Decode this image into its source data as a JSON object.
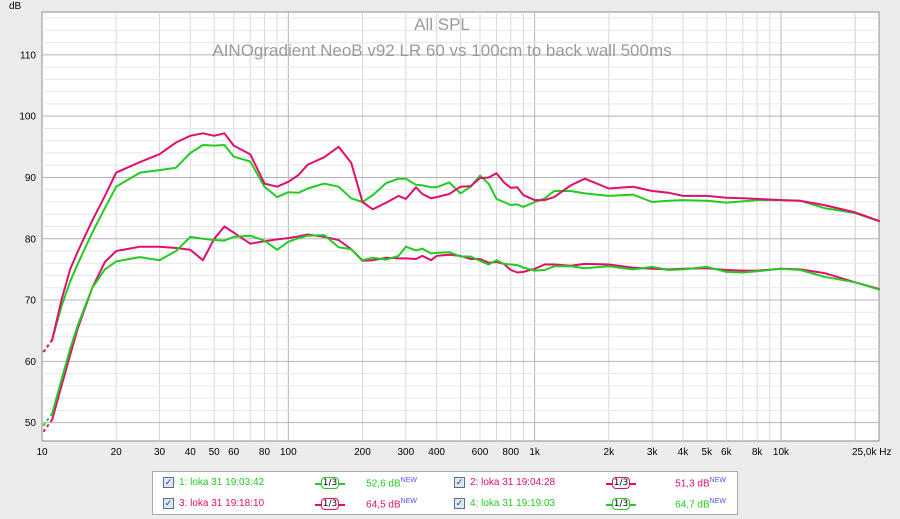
{
  "chart_data": {
    "type": "line",
    "title": "All SPL",
    "subtitle": "AINOgradient NeoB v92 LR 60 vs 100cm to back wall 500ms",
    "ylabel": "dB",
    "xunit": "Hz",
    "xscale": "log",
    "xlim": [
      10,
      25000
    ],
    "ylim": [
      47,
      117
    ],
    "grid": true,
    "x_ticks": [
      {
        "v": 10,
        "t": "10"
      },
      {
        "v": 20,
        "t": "20"
      },
      {
        "v": 30,
        "t": "30"
      },
      {
        "v": 40,
        "t": "40"
      },
      {
        "v": 50,
        "t": "50"
      },
      {
        "v": 60,
        "t": "60"
      },
      {
        "v": 80,
        "t": "80"
      },
      {
        "v": 100,
        "t": "100"
      },
      {
        "v": 200,
        "t": "200"
      },
      {
        "v": 300,
        "t": "300"
      },
      {
        "v": 400,
        "t": "400"
      },
      {
        "v": 600,
        "t": "600"
      },
      {
        "v": 800,
        "t": "800"
      },
      {
        "v": 1000,
        "t": "1k"
      },
      {
        "v": 2000,
        "t": "2k"
      },
      {
        "v": 3000,
        "t": "3k"
      },
      {
        "v": 4000,
        "t": "4k"
      },
      {
        "v": 5000,
        "t": "5k"
      },
      {
        "v": 6000,
        "t": "6k"
      },
      {
        "v": 8000,
        "t": "8k"
      },
      {
        "v": 10000,
        "t": "10k"
      },
      {
        "v": 25000,
        "t": "25,0k Hz"
      }
    ],
    "y_ticks": [
      50,
      60,
      70,
      80,
      90,
      100,
      110
    ],
    "series": [
      {
        "name": "1: loka 31 19:03:42",
        "color": "#22cc22",
        "x": [
          11,
          12,
          13,
          14,
          16,
          18,
          20,
          25,
          30,
          35,
          40,
          45,
          50,
          55,
          60,
          70,
          80,
          90,
          100,
          110,
          120,
          140,
          160,
          180,
          200,
          220,
          250,
          280,
          300,
          330,
          350,
          380,
          400,
          450,
          500,
          550,
          600,
          650,
          700,
          750,
          800,
          850,
          900,
          1000,
          1100,
          1200,
          1400,
          1600,
          2000,
          2500,
          3000,
          3500,
          4000,
          5000,
          6000,
          7000,
          8000,
          10000,
          12000,
          15000,
          20000,
          25000
        ],
        "y": [
          63.5,
          69,
          73,
          76,
          81,
          85,
          88.5,
          90.8,
          91.2,
          91.6,
          94,
          95.3,
          95.2,
          95.3,
          93.4,
          92.6,
          88.5,
          86.8,
          87.6,
          87.5,
          88.2,
          89,
          88.5,
          86.6,
          86,
          87.1,
          89.1,
          89.8,
          89.8,
          88.8,
          88.7,
          88.4,
          88.4,
          89.2,
          87.4,
          88.5,
          90.3,
          89,
          86.5,
          86,
          85.5,
          85.6,
          85.2,
          86,
          86.6,
          87.8,
          87.8,
          87.4,
          87,
          87.2,
          86,
          86.2,
          86.3,
          86.2,
          85.9,
          86.1,
          86.3,
          86.3,
          86.2,
          85,
          84.2,
          82.9
        ]
      },
      {
        "name": "2: loka 31 19:04:28",
        "color": "#e0106a",
        "x": [
          11,
          12,
          13,
          14,
          16,
          18,
          20,
          25,
          30,
          35,
          40,
          45,
          50,
          55,
          60,
          70,
          80,
          90,
          100,
          110,
          120,
          140,
          160,
          180,
          200,
          220,
          250,
          280,
          300,
          330,
          350,
          380,
          400,
          450,
          500,
          550,
          600,
          650,
          700,
          750,
          800,
          850,
          900,
          1000,
          1100,
          1200,
          1400,
          1600,
          2000,
          2500,
          3000,
          3500,
          4000,
          5000,
          6000,
          7000,
          8000,
          10000,
          12000,
          15000,
          20000,
          25000
        ],
        "y": [
          63.5,
          70,
          75,
          78,
          83,
          87,
          90.8,
          92.5,
          93.8,
          95.7,
          96.8,
          97.2,
          96.8,
          97.2,
          95.2,
          93.8,
          89,
          88.5,
          89.3,
          90.4,
          92.1,
          93.3,
          95,
          92.4,
          86,
          84.8,
          85.9,
          87,
          86.5,
          88.4,
          87.3,
          86.6,
          86.8,
          87.3,
          88.5,
          88.6,
          89.9,
          90,
          90.7,
          89.2,
          88.3,
          88.4,
          87.1,
          86.3,
          86.3,
          86.8,
          88.7,
          89.8,
          88.2,
          88.5,
          87.8,
          87.5,
          87,
          87,
          86.7,
          86.6,
          86.5,
          86.3,
          86.2,
          85.5,
          84.3,
          82.9
        ]
      },
      {
        "name": "3: loka 31 19:18:10",
        "color": "#e0106a",
        "x": [
          11,
          12,
          13,
          14,
          16,
          18,
          20,
          25,
          30,
          35,
          40,
          45,
          50,
          55,
          60,
          70,
          80,
          90,
          100,
          110,
          120,
          140,
          160,
          180,
          200,
          220,
          250,
          280,
          300,
          330,
          350,
          380,
          400,
          450,
          500,
          550,
          600,
          650,
          700,
          750,
          800,
          850,
          900,
          1000,
          1100,
          1200,
          1400,
          1600,
          2000,
          2500,
          3000,
          3500,
          4000,
          5000,
          6000,
          7000,
          8000,
          10000,
          12000,
          15000,
          20000,
          25000
        ],
        "y": [
          50.5,
          56,
          61,
          65.5,
          72,
          76.2,
          78,
          78.7,
          78.7,
          78.5,
          78.2,
          76.5,
          80,
          82,
          81,
          79.2,
          79.6,
          79.9,
          80.1,
          80.4,
          80.7,
          80.3,
          79.8,
          78.3,
          76.4,
          76.5,
          76.9,
          76.8,
          76.8,
          76.7,
          77.2,
          76.5,
          77.2,
          77.4,
          77.2,
          76.7,
          76.7,
          76.1,
          76.2,
          75.9,
          74.9,
          74.5,
          74.6,
          75.1,
          75.8,
          75.8,
          75.6,
          75.9,
          75.8,
          75.3,
          75.1,
          75,
          75.1,
          75.2,
          74.9,
          74.8,
          74.8,
          75.1,
          75,
          74.4,
          72.9,
          71.8
        ]
      },
      {
        "name": "4: loka 31 19:19:03",
        "color": "#22cc22",
        "x": [
          11,
          12,
          13,
          14,
          16,
          18,
          20,
          25,
          30,
          35,
          40,
          45,
          50,
          55,
          60,
          70,
          80,
          90,
          100,
          110,
          120,
          140,
          160,
          180,
          200,
          220,
          250,
          280,
          300,
          330,
          350,
          380,
          400,
          450,
          500,
          550,
          600,
          650,
          700,
          750,
          800,
          850,
          900,
          1000,
          1100,
          1200,
          1400,
          1600,
          2000,
          2500,
          3000,
          3500,
          4000,
          5000,
          6000,
          7000,
          8000,
          10000,
          12000,
          15000,
          20000,
          25000
        ],
        "y": [
          51.5,
          57,
          62,
          66,
          72,
          75,
          76.3,
          77,
          76.5,
          78,
          80.3,
          80,
          79.8,
          79.7,
          80.3,
          80.5,
          79.7,
          78.2,
          79.5,
          80.1,
          80.5,
          80.6,
          78.6,
          78.3,
          76.5,
          76.9,
          76.6,
          77.2,
          78.7,
          78.1,
          78.4,
          77.6,
          77.7,
          77.8,
          77.1,
          77.1,
          76.4,
          75.8,
          76.5,
          75.9,
          75.8,
          75.7,
          75.3,
          74.8,
          74.9,
          75.5,
          75.5,
          75.2,
          75.5,
          75,
          75.4,
          74.9,
          75,
          75.4,
          74.6,
          74.5,
          74.7,
          75.1,
          74.9,
          73.8,
          72.9,
          71.7
        ]
      }
    ]
  },
  "legend": {
    "items": [
      {
        "label": "1: loka 31 19:03:42",
        "smoothing": "1/3",
        "value": "52,6 dB",
        "suffix": "NEW",
        "color": "#22cc22",
        "checked": true
      },
      {
        "label": "2: loka 31 19:04:28",
        "smoothing": "1/3",
        "value": "51,3 dB",
        "suffix": "NEW",
        "color": "#e0106a",
        "checked": true
      },
      {
        "label": "3: loka 31 19:18:10",
        "smoothing": "1/3",
        "value": "64,5 dB",
        "suffix": "NEW",
        "color": "#e0106a",
        "checked": true
      },
      {
        "label": "4: loka 31 19:19:03",
        "smoothing": "1/3",
        "value": "64,7 dB",
        "suffix": "NEW",
        "color": "#22cc22",
        "checked": true
      }
    ]
  }
}
